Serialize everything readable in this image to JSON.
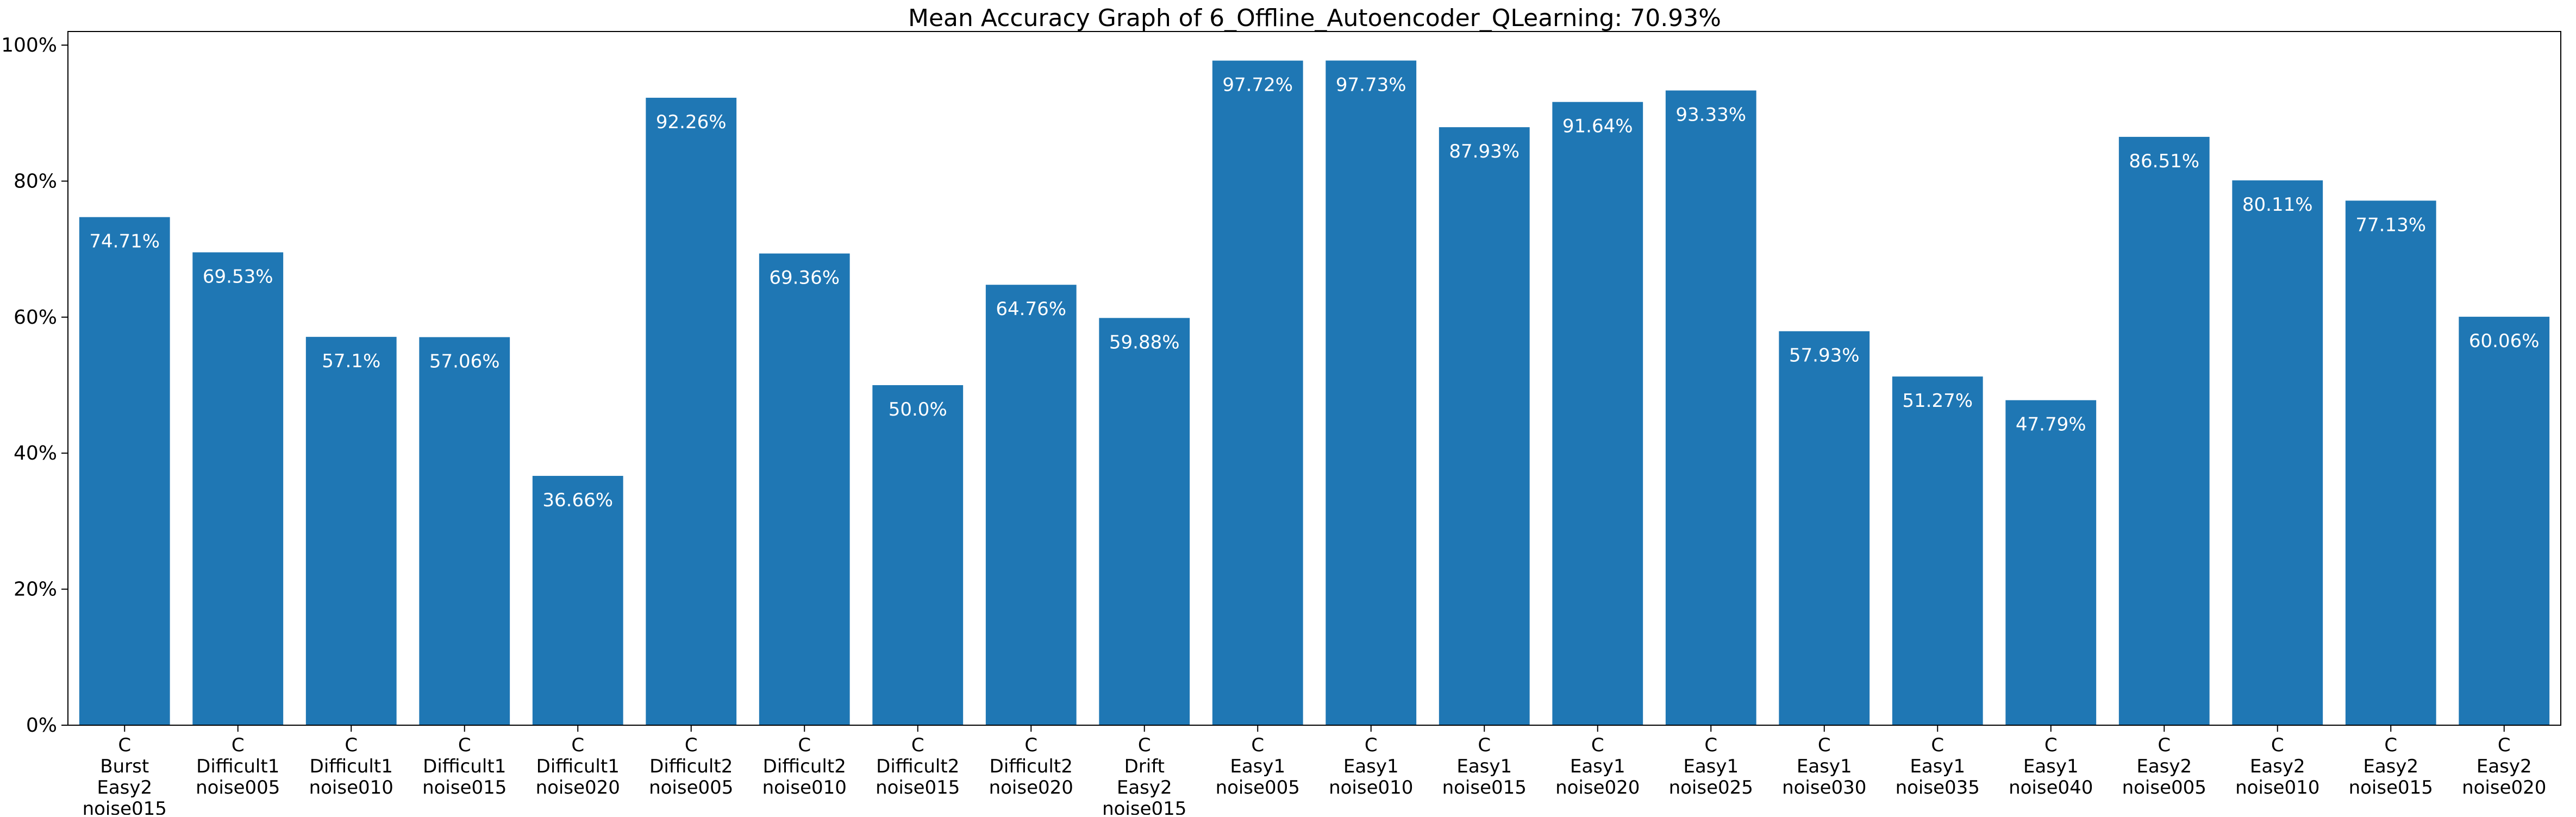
{
  "chart_data": {
    "type": "bar",
    "title": "Mean Accuracy Graph of 6_Offline_Autoencoder_QLearning: 70.93%",
    "xlabel": "",
    "ylabel": "",
    "ylim": [
      0,
      102
    ],
    "yticks": [
      {
        "value": 0,
        "label": "0%"
      },
      {
        "value": 20,
        "label": "20%"
      },
      {
        "value": 40,
        "label": "40%"
      },
      {
        "value": 60,
        "label": "60%"
      },
      {
        "value": 80,
        "label": "80%"
      },
      {
        "value": 100,
        "label": "100%"
      }
    ],
    "grid": false,
    "bar_color": "#1f77b4",
    "label_color": "#ffffff",
    "categories": [
      [
        "C",
        "Burst",
        "Easy2",
        "noise015"
      ],
      [
        "C",
        "Difficult1",
        "noise005"
      ],
      [
        "C",
        "Difficult1",
        "noise010"
      ],
      [
        "C",
        "Difficult1",
        "noise015"
      ],
      [
        "C",
        "Difficult1",
        "noise020"
      ],
      [
        "C",
        "Difficult2",
        "noise005"
      ],
      [
        "C",
        "Difficult2",
        "noise010"
      ],
      [
        "C",
        "Difficult2",
        "noise015"
      ],
      [
        "C",
        "Difficult2",
        "noise020"
      ],
      [
        "C",
        "Drift",
        "Easy2",
        "noise015"
      ],
      [
        "C",
        "Easy1",
        "noise005"
      ],
      [
        "C",
        "Easy1",
        "noise010"
      ],
      [
        "C",
        "Easy1",
        "noise015"
      ],
      [
        "C",
        "Easy1",
        "noise020"
      ],
      [
        "C",
        "Easy1",
        "noise025"
      ],
      [
        "C",
        "Easy1",
        "noise030"
      ],
      [
        "C",
        "Easy1",
        "noise035"
      ],
      [
        "C",
        "Easy1",
        "noise040"
      ],
      [
        "C",
        "Easy2",
        "noise005"
      ],
      [
        "C",
        "Easy2",
        "noise010"
      ],
      [
        "C",
        "Easy2",
        "noise015"
      ],
      [
        "C",
        "Easy2",
        "noise020"
      ]
    ],
    "values": [
      74.71,
      69.53,
      57.1,
      57.06,
      36.66,
      92.26,
      69.36,
      50.0,
      64.76,
      59.88,
      97.72,
      97.73,
      87.93,
      91.64,
      93.33,
      57.93,
      51.27,
      47.79,
      86.51,
      80.11,
      77.13,
      60.06
    ],
    "value_labels": [
      "74.71%",
      "69.53%",
      "57.1%",
      "57.06%",
      "36.66%",
      "92.26%",
      "69.36%",
      "50.0%",
      "64.76%",
      "59.88%",
      "97.72%",
      "97.73%",
      "87.93%",
      "91.64%",
      "93.33%",
      "57.93%",
      "51.27%",
      "47.79%",
      "86.51%",
      "80.11%",
      "77.13%",
      "60.06%"
    ]
  }
}
